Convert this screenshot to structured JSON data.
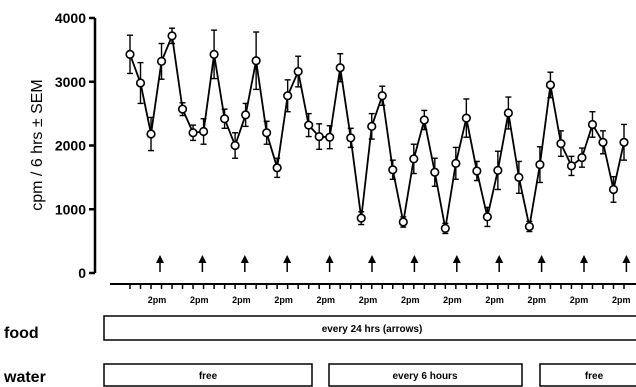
{
  "chart_data": {
    "type": "line",
    "ylabel": "cpm / 6 hrs ± SEM",
    "ylim": [
      0,
      4000
    ],
    "yticks": [
      0,
      1000,
      2000,
      3000,
      4000
    ],
    "ytick_labels": [
      "0",
      "1000",
      "2000",
      "3000",
      "4000"
    ],
    "x_tick_labels": [
      "2pm",
      "2pm",
      "2pm",
      "2pm",
      "2pm",
      "2pm",
      "2pm",
      "2pm",
      "2pm",
      "2pm",
      "2pm",
      "2pm"
    ],
    "series": [
      {
        "values": [
          3430,
          2980,
          2180,
          3320,
          3720,
          2570,
          2200,
          2220,
          3430,
          2420,
          2000,
          2480,
          3330,
          2200,
          1650,
          2780,
          3160,
          2320,
          2140,
          2130,
          3220,
          2120,
          860,
          2300,
          2780,
          1620,
          800,
          1790,
          2400,
          1580,
          700,
          1720,
          2430,
          1600,
          880,
          1610,
          2510,
          1500,
          730,
          1700,
          2950,
          2030,
          1680,
          1810,
          2330,
          2050,
          1310,
          2050
        ],
        "errors": [
          300,
          320,
          260,
          280,
          120,
          100,
          120,
          200,
          380,
          150,
          200,
          180,
          450,
          180,
          150,
          250,
          240,
          180,
          200,
          180,
          220,
          150,
          100,
          200,
          150,
          150,
          80,
          230,
          150,
          220,
          80,
          250,
          300,
          150,
          150,
          300,
          250,
          250,
          80,
          280,
          200,
          200,
          150,
          150,
          200,
          180,
          200,
          280
        ]
      }
    ],
    "arrow_count": 12
  },
  "legend_rows": {
    "food": {
      "label": "food",
      "boxes": [
        {
          "text": "every 24 hrs  (arrows)"
        }
      ]
    },
    "water": {
      "label": "water",
      "boxes": [
        {
          "text": "free"
        },
        {
          "text": "every  6  hours"
        },
        {
          "text": "free"
        }
      ]
    }
  }
}
